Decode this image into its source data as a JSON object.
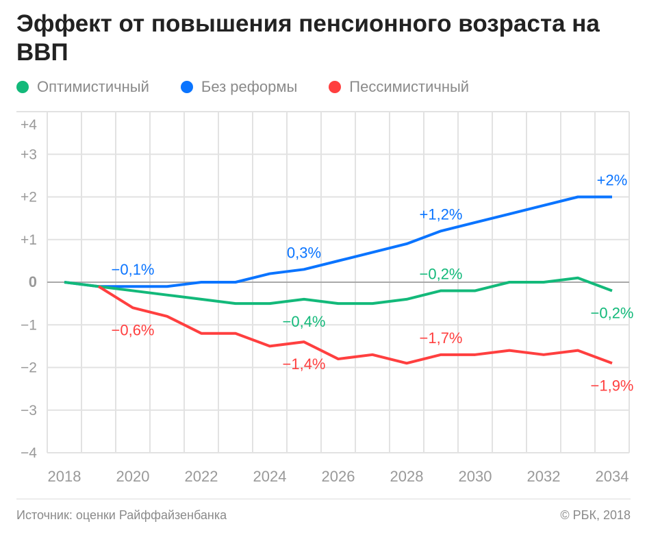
{
  "chart_data": {
    "type": "line",
    "title": "Эффект от повышения пенсионного возраста на ВВП",
    "x": [
      2018,
      2019,
      2020,
      2021,
      2022,
      2023,
      2024,
      2025,
      2026,
      2027,
      2028,
      2029,
      2030,
      2031,
      2032,
      2033,
      2034
    ],
    "x_tick_labels": [
      "2018",
      "2020",
      "2022",
      "2024",
      "2026",
      "2028",
      "2030",
      "2032",
      "2034"
    ],
    "y_tick_labels": [
      "+4",
      "+3",
      "+2",
      "+1",
      "0",
      "−1",
      "−2",
      "−3",
      "−4"
    ],
    "ylim": [
      -4,
      4
    ],
    "grid": true,
    "legend_position": "top-left",
    "series": [
      {
        "name": "Оптимистичный",
        "color": "#13b97a",
        "values": [
          0,
          -0.1,
          -0.2,
          -0.3,
          -0.4,
          -0.5,
          -0.5,
          -0.4,
          -0.5,
          -0.5,
          -0.4,
          -0.2,
          -0.2,
          0,
          0,
          0.1,
          -0.2
        ]
      },
      {
        "name": "Без реформы",
        "color": "#0a74ff",
        "values": [
          0,
          -0.1,
          -0.1,
          -0.1,
          0,
          0,
          0.2,
          0.3,
          0.5,
          0.7,
          0.9,
          1.2,
          1.4,
          1.6,
          1.8,
          2.0,
          2.0
        ]
      },
      {
        "name": "Пессимистичный",
        "color": "#ff3f3f",
        "values": [
          null,
          -0.1,
          -0.6,
          -0.8,
          -1.2,
          -1.2,
          -1.5,
          -1.4,
          -1.8,
          -1.7,
          -1.9,
          -1.7,
          -1.7,
          -1.6,
          -1.7,
          -1.6,
          -1.9
        ]
      }
    ],
    "annotations": [
      {
        "series": 1,
        "year": 2020,
        "text": "−0,1%",
        "pos": "above"
      },
      {
        "series": 1,
        "year": 2025,
        "text": "0,3%",
        "pos": "above"
      },
      {
        "series": 1,
        "year": 2029,
        "text": "+1,2%",
        "pos": "above"
      },
      {
        "series": 1,
        "year": 2034,
        "text": "+2%",
        "pos": "above"
      },
      {
        "series": 0,
        "year": 2025,
        "text": "−0,4%",
        "pos": "below"
      },
      {
        "series": 0,
        "year": 2029,
        "text": "−0,2%",
        "pos": "above"
      },
      {
        "series": 0,
        "year": 2034,
        "text": "−0,2%",
        "pos": "below"
      },
      {
        "series": 2,
        "year": 2020,
        "text": "−0,6%",
        "pos": "below"
      },
      {
        "series": 2,
        "year": 2025,
        "text": "−1,4%",
        "pos": "below"
      },
      {
        "series": 2,
        "year": 2029,
        "text": "−1,7%",
        "pos": "above"
      },
      {
        "series": 2,
        "year": 2034,
        "text": "−1,9%",
        "pos": "below"
      }
    ]
  },
  "footer": {
    "source": "Источник: оценки Райффайзенбанка",
    "copyright": "© РБК, 2018"
  }
}
